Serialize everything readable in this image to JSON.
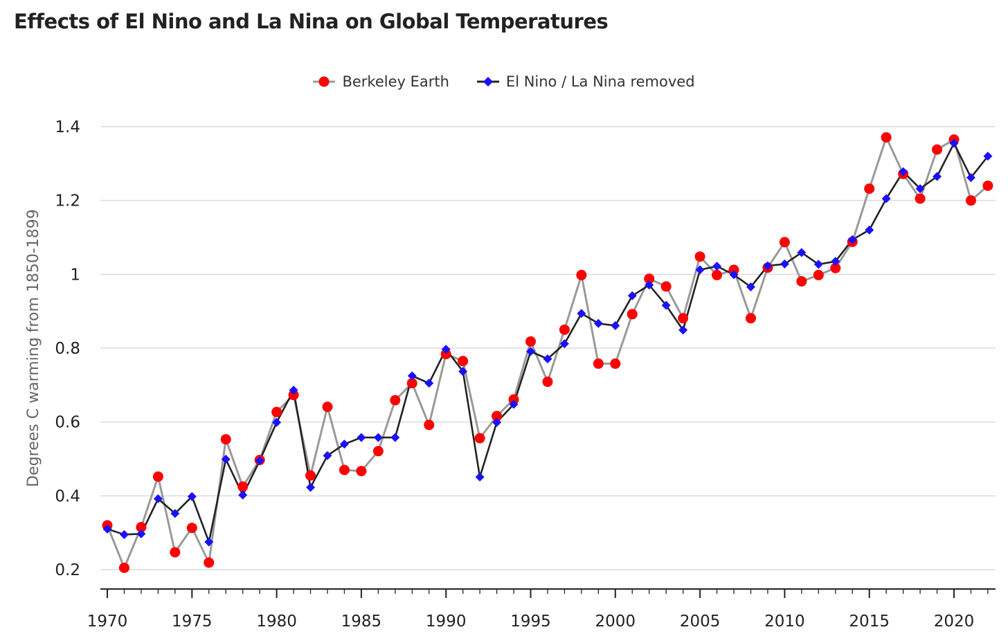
{
  "chart_data": {
    "type": "line",
    "title": "Effects of El Nino and La Nina on Global Temperatures",
    "xlabel": "",
    "ylabel": "Degrees C warming from 1850-1899",
    "xlim": [
      1970,
      2022
    ],
    "ylim": [
      0.2,
      1.4
    ],
    "x_ticks": [
      "1970",
      "1975",
      "1980",
      "1985",
      "1990",
      "1995",
      "2000",
      "2005",
      "2010",
      "2015",
      "2020"
    ],
    "y_ticks": [
      "0.2",
      "0.4",
      "0.6",
      "0.8",
      "1",
      "1.2",
      "1.4"
    ],
    "grid": true,
    "legend_position": "top-center",
    "x": [
      1970,
      1971,
      1972,
      1973,
      1974,
      1975,
      1976,
      1977,
      1978,
      1979,
      1980,
      1981,
      1982,
      1983,
      1984,
      1985,
      1986,
      1987,
      1988,
      1989,
      1990,
      1991,
      1992,
      1993,
      1994,
      1995,
      1996,
      1997,
      1998,
      1999,
      2000,
      2001,
      2002,
      2003,
      2004,
      2005,
      2006,
      2007,
      2008,
      2009,
      2010,
      2011,
      2012,
      2013,
      2014,
      2015,
      2016,
      2017,
      2018,
      2019,
      2020,
      2021,
      2022
    ],
    "series": [
      {
        "name": "Berkeley Earth",
        "line_color": "#999999",
        "marker_color": "#ff0000",
        "marker": "circle",
        "values": [
          0.32,
          0.205,
          0.315,
          0.452,
          0.247,
          0.313,
          0.219,
          0.553,
          0.425,
          0.497,
          0.627,
          0.673,
          0.455,
          0.641,
          0.47,
          0.467,
          0.521,
          0.659,
          0.705,
          0.592,
          0.784,
          0.765,
          0.556,
          0.616,
          0.661,
          0.818,
          0.709,
          0.85,
          0.998,
          0.758,
          0.758,
          0.892,
          0.988,
          0.967,
          0.881,
          1.048,
          0.998,
          1.012,
          0.881,
          1.018,
          1.087,
          0.981,
          0.998,
          1.017,
          1.088,
          1.232,
          1.371,
          1.272,
          1.205,
          1.338,
          1.365,
          1.2,
          1.24
        ]
      },
      {
        "name": "El Nino / La Nina removed",
        "line_color": "#222222",
        "marker_color": "#1a10ff",
        "marker": "diamond",
        "values": [
          0.31,
          0.295,
          0.297,
          0.392,
          0.352,
          0.398,
          0.275,
          0.499,
          0.402,
          0.495,
          0.599,
          0.686,
          0.423,
          0.509,
          0.54,
          0.558,
          0.558,
          0.558,
          0.725,
          0.705,
          0.797,
          0.737,
          0.451,
          0.599,
          0.648,
          0.791,
          0.771,
          0.812,
          0.894,
          0.867,
          0.861,
          0.942,
          0.971,
          0.916,
          0.849,
          1.012,
          1.022,
          0.999,
          0.966,
          1.023,
          1.028,
          1.059,
          1.027,
          1.035,
          1.094,
          1.12,
          1.205,
          1.278,
          1.232,
          1.265,
          1.355,
          1.262,
          1.32
        ]
      }
    ]
  }
}
